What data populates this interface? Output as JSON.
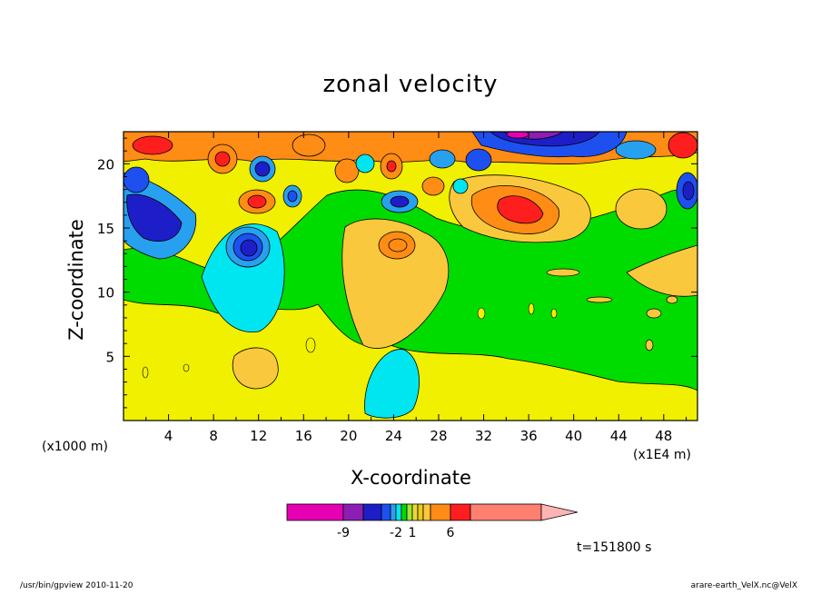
{
  "chart_data": {
    "type": "heatmap",
    "title": "zonal velocity",
    "xlabel": "X-coordinate",
    "ylabel": "Z-coordinate",
    "x_unit_label": "(x1000 m)",
    "x_scale_label": "(x1E4 m)",
    "time_label": "t=151800 s",
    "xlim": [
      0,
      51
    ],
    "ylim": [
      0,
      22.5
    ],
    "x_ticks": [
      4,
      8,
      12,
      16,
      20,
      24,
      28,
      32,
      36,
      40,
      44,
      48
    ],
    "y_ticks": [
      5,
      10,
      15,
      20
    ],
    "colorbar": {
      "tick_labels": [
        "-9",
        "-2",
        "1",
        "6"
      ],
      "tick_values": [
        -9,
        -2,
        1,
        6
      ],
      "levels": [
        -12,
        -9,
        -7,
        -5,
        -3,
        -2,
        -1,
        0,
        1,
        2,
        3,
        4,
        6,
        8,
        12
      ],
      "colors": [
        "#e600b4",
        "#8c1eb4",
        "#1e1ec8",
        "#1e50f0",
        "#28a0f0",
        "#00e6f0",
        "#00dc00",
        "#a0e632",
        "#e6dc32",
        "#f0c81e",
        "#fac83c",
        "#ff8c14",
        "#ff1e1e",
        "#ff8070",
        "#ffb4b4"
      ]
    },
    "features": [
      {
        "x": 24,
        "z": 14.2,
        "value": 5
      },
      {
        "x": 11.5,
        "z": 14.5,
        "value": -8
      },
      {
        "x": 12,
        "z": 17.2,
        "value": 5
      },
      {
        "x": 12,
        "z": 20,
        "value": -7
      },
      {
        "x": 25,
        "z": 18,
        "value": -5
      },
      {
        "x": 35,
        "z": 15.5,
        "value": 6
      },
      {
        "x": 36,
        "z": 22,
        "value": -10
      },
      {
        "x": 4,
        "z": 16,
        "value": -7
      },
      {
        "x": 23,
        "z": 3.5,
        "value": -2
      },
      {
        "x": 11.5,
        "z": 4.2,
        "value": 3
      },
      {
        "x": 46,
        "z": 15.5,
        "value": 3
      }
    ]
  },
  "footer": {
    "left": "/usr/bin/gpview  2010-11-20",
    "right": "arare-earth_VelX.nc@VelX"
  }
}
